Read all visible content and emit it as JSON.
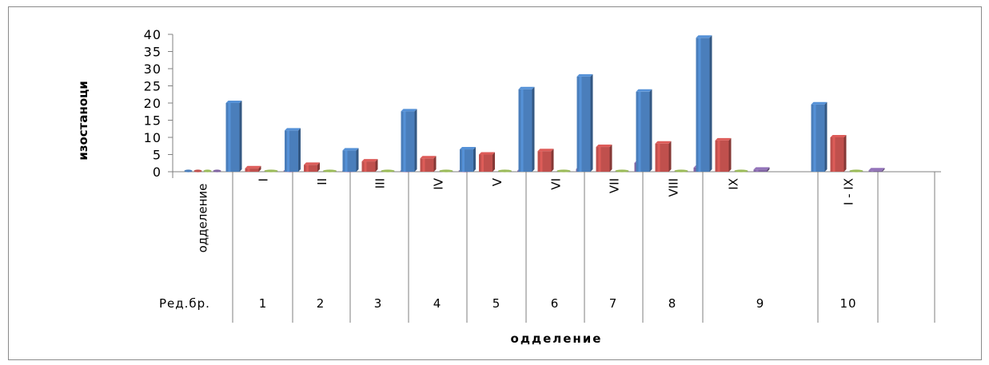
{
  "chart_data": {
    "type": "bar",
    "variant": "3d-clustered-column",
    "title": "",
    "ylabel": "изостаноци",
    "xlabel": "одделение",
    "ylim": [
      0,
      40
    ],
    "yticks": [
      0,
      5,
      10,
      15,
      20,
      25,
      30,
      35,
      40
    ],
    "grid": false,
    "legend": "none",
    "table_header_category": "одделение",
    "table_header_row": "Ред.бр.",
    "categories": [
      "I",
      "II",
      "III",
      "IV",
      "V",
      "VI",
      "VII",
      "VIII",
      "IX",
      "I - IX"
    ],
    "row_numbers": [
      "1",
      "2",
      "3",
      "4",
      "5",
      "6",
      "7",
      "8",
      "9",
      "10"
    ],
    "series": [
      {
        "color": "#4a7ebb",
        "values": [
          20,
          12,
          6.2,
          17.6,
          6.5,
          24,
          27.7,
          23.3,
          39,
          19.6
        ]
      },
      {
        "color": "#c0504d",
        "values": [
          1,
          2,
          3,
          3.9,
          5,
          6,
          7.2,
          8.2,
          9.1,
          10
        ]
      },
      {
        "color": "#9bbb59",
        "values": [
          0,
          0,
          0,
          0,
          0,
          0,
          0,
          0,
          0,
          0
        ]
      },
      {
        "color": "#8064a2",
        "values": [
          0,
          0,
          0,
          0,
          0.3,
          0.8,
          2.6,
          1.2,
          0.6,
          0.4
        ]
      }
    ]
  }
}
